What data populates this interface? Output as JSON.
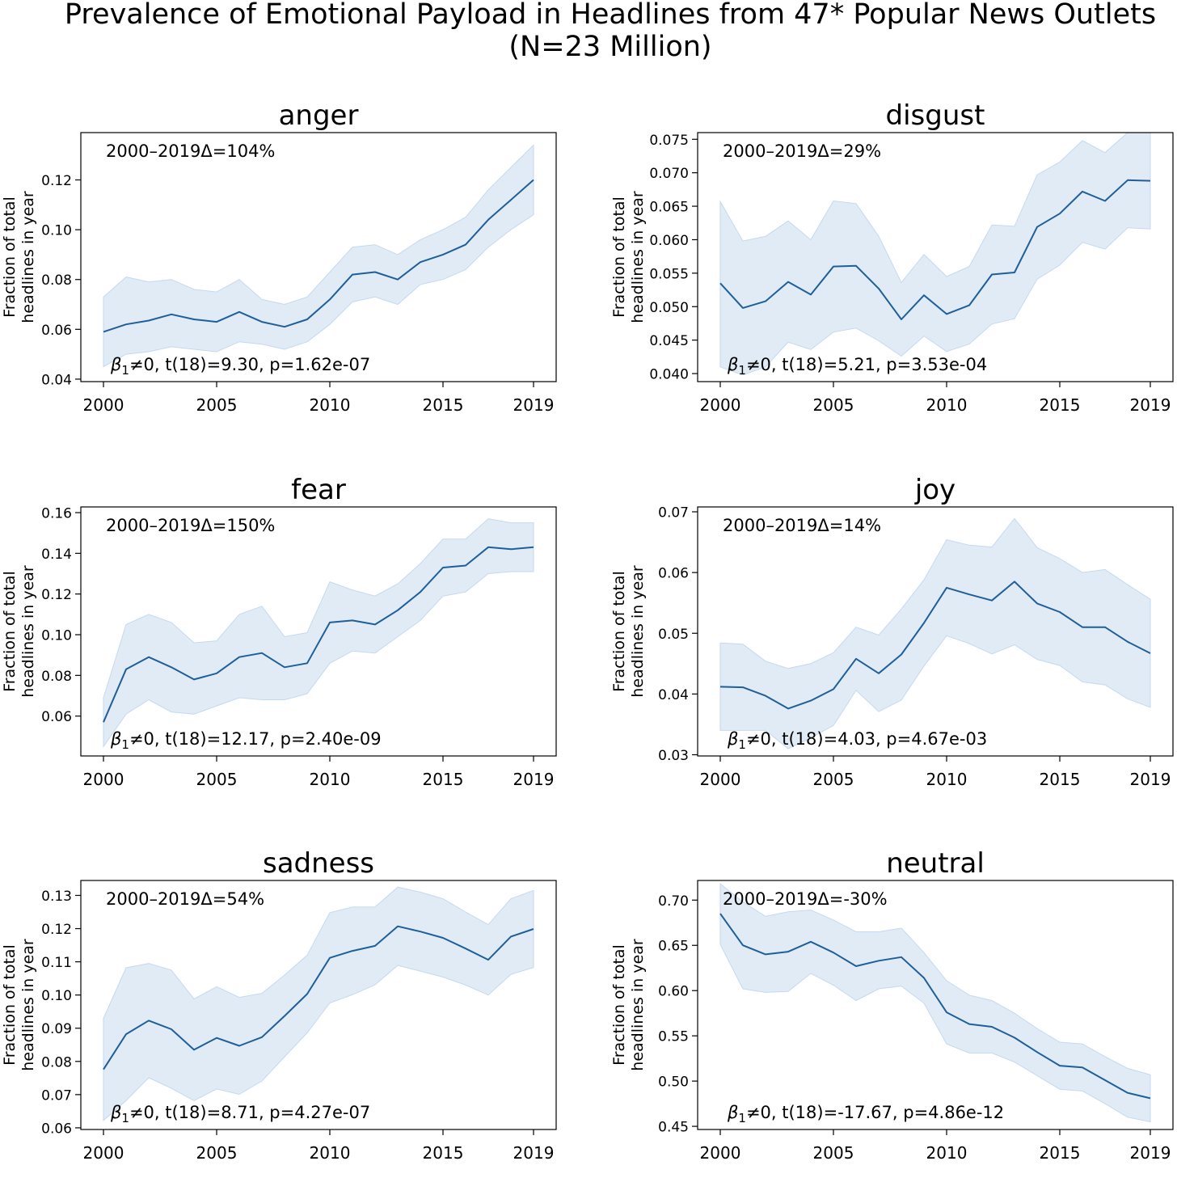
{
  "figure": {
    "title_line1": "Prevalence of Emotional Payload in Headlines from 47* Popular News Outlets",
    "title_line2": "(N=23 Million)",
    "ylabel_line1": "Fraction of total",
    "ylabel_line2": "headlines in year",
    "line_color": "#1f5f99",
    "band_color": "#dbe8f5",
    "band_edge_color": "#c5d9ee"
  },
  "chart_data": [
    {
      "type": "line",
      "title": "anger",
      "xlabel": "",
      "ylabel": "Fraction of total headlines in year",
      "x": [
        2000,
        2001,
        2002,
        2003,
        2004,
        2005,
        2006,
        2007,
        2008,
        2009,
        2010,
        2011,
        2012,
        2013,
        2014,
        2015,
        2016,
        2017,
        2018,
        2019
      ],
      "values": [
        0.059,
        0.062,
        0.0635,
        0.066,
        0.064,
        0.063,
        0.067,
        0.063,
        0.061,
        0.064,
        0.072,
        0.082,
        0.083,
        0.08,
        0.087,
        0.09,
        0.094,
        0.104,
        0.112,
        0.12
      ],
      "ci_upper": [
        0.073,
        0.081,
        0.079,
        0.08,
        0.076,
        0.075,
        0.08,
        0.072,
        0.07,
        0.073,
        0.083,
        0.093,
        0.094,
        0.09,
        0.096,
        0.1,
        0.105,
        0.116,
        0.125,
        0.134
      ],
      "ci_lower": [
        0.045,
        0.05,
        0.051,
        0.053,
        0.052,
        0.051,
        0.055,
        0.054,
        0.052,
        0.055,
        0.062,
        0.071,
        0.073,
        0.07,
        0.078,
        0.08,
        0.084,
        0.093,
        0.1,
        0.106
      ],
      "xticks": [
        2000,
        2005,
        2010,
        2015,
        2019
      ],
      "yticks": [
        0.04,
        0.06,
        0.08,
        0.1,
        0.12
      ],
      "ytick_labels": [
        "0.04",
        "0.06",
        "0.08",
        "0.10",
        "0.12"
      ],
      "ylim": [
        0.039,
        0.139
      ],
      "delta_label": "2000–2019Δ=104%",
      "stat_prefix": "β",
      "stat_sub": "1",
      "stat_suffix": "≠0, t(18)=9.30, p=1.62e-07"
    },
    {
      "type": "line",
      "title": "disgust",
      "xlabel": "",
      "ylabel": "Fraction of total headlines in year",
      "x": [
        2000,
        2001,
        2002,
        2003,
        2004,
        2005,
        2006,
        2007,
        2008,
        2009,
        2010,
        2011,
        2012,
        2013,
        2014,
        2015,
        2016,
        2017,
        2018,
        2019
      ],
      "values": [
        0.0535,
        0.0498,
        0.0508,
        0.0537,
        0.0518,
        0.056,
        0.0561,
        0.0527,
        0.0481,
        0.0517,
        0.0489,
        0.0502,
        0.0548,
        0.0551,
        0.0619,
        0.0639,
        0.0672,
        0.0658,
        0.0689,
        0.0688
      ],
      "ci_upper": [
        0.0657,
        0.0598,
        0.0605,
        0.0628,
        0.06,
        0.0658,
        0.0654,
        0.0605,
        0.0536,
        0.0578,
        0.0545,
        0.056,
        0.0622,
        0.062,
        0.0697,
        0.0716,
        0.0748,
        0.073,
        0.076,
        0.076
      ],
      "ci_lower": [
        0.041,
        0.0398,
        0.041,
        0.0447,
        0.0436,
        0.0462,
        0.0468,
        0.0449,
        0.0426,
        0.0456,
        0.0433,
        0.0444,
        0.0474,
        0.0482,
        0.0541,
        0.0562,
        0.0596,
        0.0586,
        0.0618,
        0.0616
      ],
      "xticks": [
        2000,
        2005,
        2010,
        2015,
        2019
      ],
      "yticks": [
        0.04,
        0.045,
        0.05,
        0.055,
        0.06,
        0.065,
        0.07,
        0.075
      ],
      "ytick_labels": [
        "0.040",
        "0.045",
        "0.050",
        "0.055",
        "0.060",
        "0.065",
        "0.070",
        "0.075"
      ],
      "ylim": [
        0.0388,
        0.076
      ],
      "delta_label": "2000–2019Δ=29%",
      "stat_prefix": "β",
      "stat_sub": "1",
      "stat_suffix": "≠0, t(18)=5.21, p=3.53e-04"
    },
    {
      "type": "line",
      "title": "fear",
      "xlabel": "",
      "ylabel": "Fraction of total headlines in year",
      "x": [
        2000,
        2001,
        2002,
        2003,
        2004,
        2005,
        2006,
        2007,
        2008,
        2009,
        2010,
        2011,
        2012,
        2013,
        2014,
        2015,
        2016,
        2017,
        2018,
        2019
      ],
      "values": [
        0.057,
        0.083,
        0.089,
        0.084,
        0.078,
        0.081,
        0.089,
        0.091,
        0.084,
        0.086,
        0.106,
        0.107,
        0.105,
        0.112,
        0.121,
        0.133,
        0.134,
        0.143,
        0.142,
        0.143
      ],
      "ci_upper": [
        0.069,
        0.105,
        0.11,
        0.106,
        0.096,
        0.097,
        0.11,
        0.114,
        0.099,
        0.101,
        0.126,
        0.122,
        0.119,
        0.125,
        0.135,
        0.147,
        0.147,
        0.157,
        0.155,
        0.155
      ],
      "ci_lower": [
        0.045,
        0.061,
        0.068,
        0.062,
        0.061,
        0.065,
        0.069,
        0.068,
        0.068,
        0.071,
        0.086,
        0.092,
        0.091,
        0.099,
        0.107,
        0.119,
        0.121,
        0.13,
        0.131,
        0.131
      ],
      "xticks": [
        2000,
        2005,
        2010,
        2015,
        2019
      ],
      "yticks": [
        0.06,
        0.08,
        0.1,
        0.12,
        0.14,
        0.16
      ],
      "ytick_labels": [
        "0.06",
        "0.08",
        "0.10",
        "0.12",
        "0.14",
        "0.16"
      ],
      "ylim": [
        0.0404,
        0.1628
      ],
      "delta_label": "2000–2019Δ=150%",
      "stat_prefix": "β",
      "stat_sub": "1",
      "stat_suffix": "≠0, t(18)=12.17, p=2.40e-09"
    },
    {
      "type": "line",
      "title": "joy",
      "xlabel": "",
      "ylabel": "Fraction of total headlines in year",
      "x": [
        2000,
        2001,
        2002,
        2003,
        2004,
        2005,
        2006,
        2007,
        2008,
        2009,
        2010,
        2011,
        2012,
        2013,
        2014,
        2015,
        2016,
        2017,
        2018,
        2019
      ],
      "values": [
        0.0412,
        0.0411,
        0.0397,
        0.0376,
        0.0389,
        0.0408,
        0.0458,
        0.0434,
        0.0465,
        0.0517,
        0.0575,
        0.0564,
        0.0554,
        0.0585,
        0.0549,
        0.0535,
        0.051,
        0.051,
        0.0486,
        0.0467
      ],
      "ci_upper": [
        0.0484,
        0.0482,
        0.0454,
        0.0442,
        0.045,
        0.0468,
        0.051,
        0.0497,
        0.054,
        0.0588,
        0.0654,
        0.0645,
        0.0642,
        0.0689,
        0.0641,
        0.0623,
        0.06,
        0.0605,
        0.058,
        0.0556
      ],
      "ci_lower": [
        0.034,
        0.034,
        0.034,
        0.031,
        0.0328,
        0.0348,
        0.0406,
        0.0371,
        0.039,
        0.0446,
        0.0496,
        0.0483,
        0.0466,
        0.0481,
        0.0457,
        0.0447,
        0.042,
        0.0415,
        0.0392,
        0.0378
      ],
      "xticks": [
        2000,
        2005,
        2010,
        2015,
        2019
      ],
      "yticks": [
        0.03,
        0.04,
        0.05,
        0.06,
        0.07
      ],
      "ytick_labels": [
        "0.03",
        "0.04",
        "0.05",
        "0.06",
        "0.07"
      ],
      "ylim": [
        0.0298,
        0.0708
      ],
      "delta_label": "2000–2019Δ=14%",
      "stat_prefix": "β",
      "stat_sub": "1",
      "stat_suffix": "≠0, t(18)=4.03, p=4.67e-03"
    },
    {
      "type": "line",
      "title": "sadness",
      "xlabel": "",
      "ylabel": "Fraction of total headlines in year",
      "x": [
        2000,
        2001,
        2002,
        2003,
        2004,
        2005,
        2006,
        2007,
        2008,
        2009,
        2010,
        2011,
        2012,
        2013,
        2014,
        2015,
        2016,
        2017,
        2018,
        2019
      ],
      "values": [
        0.0776,
        0.0882,
        0.0923,
        0.0897,
        0.0835,
        0.0871,
        0.0847,
        0.0873,
        0.0937,
        0.1003,
        0.1112,
        0.1133,
        0.1148,
        0.1207,
        0.1191,
        0.1172,
        0.114,
        0.1106,
        0.1176,
        0.1199
      ],
      "ci_upper": [
        0.093,
        0.1082,
        0.1095,
        0.1075,
        0.0988,
        0.1025,
        0.0993,
        0.1005,
        0.106,
        0.112,
        0.1248,
        0.1265,
        0.1265,
        0.1325,
        0.131,
        0.129,
        0.125,
        0.1212,
        0.129,
        0.1315
      ],
      "ci_lower": [
        0.0622,
        0.0682,
        0.0751,
        0.0719,
        0.0682,
        0.0717,
        0.0701,
        0.0741,
        0.0814,
        0.0886,
        0.0976,
        0.1001,
        0.1031,
        0.1089,
        0.1072,
        0.1054,
        0.103,
        0.1,
        0.1062,
        0.1083
      ],
      "xticks": [
        2000,
        2005,
        2010,
        2015,
        2019
      ],
      "yticks": [
        0.06,
        0.07,
        0.08,
        0.09,
        0.1,
        0.11,
        0.12,
        0.13
      ],
      "ytick_labels": [
        "0.06",
        "0.07",
        "0.08",
        "0.09",
        "0.10",
        "0.11",
        "0.12",
        "0.13"
      ],
      "ylim": [
        0.0595,
        0.1345
      ],
      "delta_label": "2000–2019Δ=54%",
      "stat_prefix": "β",
      "stat_sub": "1",
      "stat_suffix": "≠0, t(18)=8.71, p=4.27e-07"
    },
    {
      "type": "line",
      "title": "neutral",
      "xlabel": "",
      "ylabel": "Fraction of total headlines in year",
      "x": [
        2000,
        2001,
        2002,
        2003,
        2004,
        2005,
        2006,
        2007,
        2008,
        2009,
        2010,
        2011,
        2012,
        2013,
        2014,
        2015,
        2016,
        2017,
        2018,
        2019
      ],
      "values": [
        0.685,
        0.65,
        0.64,
        0.643,
        0.654,
        0.642,
        0.627,
        0.633,
        0.637,
        0.614,
        0.576,
        0.563,
        0.56,
        0.548,
        0.532,
        0.517,
        0.515,
        0.501,
        0.487,
        0.481
      ],
      "ci_upper": [
        0.718,
        0.698,
        0.682,
        0.687,
        0.689,
        0.678,
        0.665,
        0.665,
        0.669,
        0.642,
        0.611,
        0.595,
        0.589,
        0.575,
        0.558,
        0.543,
        0.541,
        0.527,
        0.514,
        0.507
      ],
      "ci_lower": [
        0.651,
        0.602,
        0.598,
        0.599,
        0.619,
        0.606,
        0.589,
        0.602,
        0.605,
        0.586,
        0.541,
        0.531,
        0.531,
        0.521,
        0.506,
        0.491,
        0.489,
        0.475,
        0.46,
        0.455
      ],
      "xticks": [
        2000,
        2005,
        2010,
        2015,
        2019
      ],
      "yticks": [
        0.45,
        0.5,
        0.55,
        0.6,
        0.65,
        0.7
      ],
      "ytick_labels": [
        "0.45",
        "0.50",
        "0.55",
        "0.60",
        "0.65",
        "0.70"
      ],
      "ylim": [
        0.4465,
        0.7217
      ],
      "delta_label": "2000–2019Δ=-30%",
      "stat_prefix": "β",
      "stat_sub": "1",
      "stat_suffix": "≠0, t(18)=-17.67, p=4.86e-12"
    }
  ]
}
